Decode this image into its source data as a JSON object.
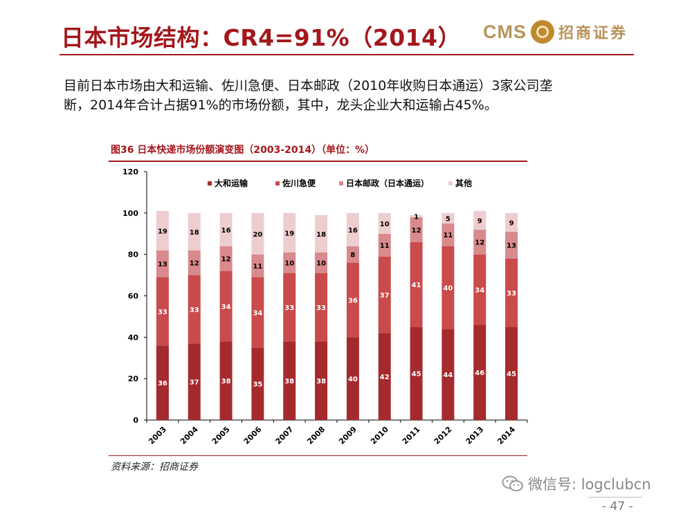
{
  "header": {
    "title": "日本市场结构：CR4=91%（2014）",
    "logo_text": "CMS",
    "logo_cn": "招商证券"
  },
  "intro": {
    "line1": "目前日本市场由大和运输、佐川急便、日本邮政（2010年收购日本通运）3家公司垄",
    "line2": "断，2014年合计占据91%的市场份额，其中，龙头企业大和运输占45%。"
  },
  "figure": {
    "title": "图36 日本快递市场份额演变图（2003-2014）（单位：%）",
    "source": "资料来源：招商证券"
  },
  "chart_data": {
    "type": "bar",
    "stacked": true,
    "categories": [
      "2003",
      "2004",
      "2005",
      "2006",
      "2007",
      "2008",
      "2009",
      "2010",
      "2011",
      "2012",
      "2013",
      "2014"
    ],
    "series": [
      {
        "name": "大和运输",
        "color": "#a52a2d",
        "values": [
          36,
          37,
          38,
          35,
          38,
          38,
          40,
          42,
          45,
          44,
          46,
          45
        ]
      },
      {
        "name": "佐川急便",
        "color": "#c94b4b",
        "values": [
          33,
          33,
          34,
          34,
          33,
          33,
          36,
          37,
          41,
          40,
          34,
          33
        ]
      },
      {
        "name": "日本邮政（日本通运）",
        "color": "#d98a8c",
        "values": [
          13,
          12,
          12,
          11,
          10,
          10,
          8,
          11,
          12,
          11,
          12,
          13
        ]
      },
      {
        "name": "其他",
        "color": "#eecdd0",
        "values": [
          19,
          18,
          16,
          20,
          19,
          18,
          16,
          10,
          1,
          5,
          9,
          9
        ]
      }
    ],
    "yticks": [
      0,
      20,
      40,
      60,
      80,
      100,
      120
    ],
    "ylim": [
      0,
      120
    ],
    "legend_position": "top",
    "grid": false
  },
  "footer": {
    "wechat": "微信号: logclubcn",
    "page": "- 47 -"
  }
}
